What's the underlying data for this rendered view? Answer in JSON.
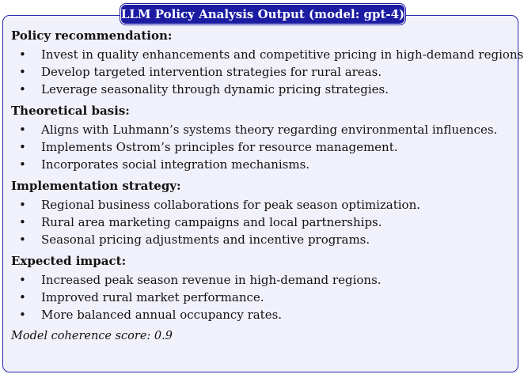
{
  "panel": {
    "title": "LLM Policy Analysis Output (model: gpt-4)",
    "accent_color": "#1c1ca3",
    "background_color": "#f1f1fb"
  },
  "sections": [
    {
      "heading": "Policy recommendation:",
      "items": [
        "Invest in quality enhancements and competitive pricing in high-demand regions.",
        "Develop targeted intervention strategies for rural areas.",
        "Leverage seasonality through dynamic pricing strategies."
      ]
    },
    {
      "heading": "Theoretical basis:",
      "items": [
        "Aligns with Luhmann’s systems theory regarding environmental influences.",
        "Implements Ostrom’s principles for resource management.",
        "Incorporates social integration mechanisms."
      ]
    },
    {
      "heading": "Implementation strategy:",
      "items": [
        "Regional business collaborations for peak season optimization.",
        "Rural area marketing campaigns and local partnerships.",
        "Seasonal pricing adjustments and incentive programs."
      ]
    },
    {
      "heading": "Expected impact:",
      "items": [
        "Increased peak season revenue in high-demand regions.",
        "Improved rural market performance.",
        "More balanced annual occupancy rates."
      ]
    }
  ],
  "bullet_glyph": "•",
  "score_text": "Model coherence score: 0.9"
}
